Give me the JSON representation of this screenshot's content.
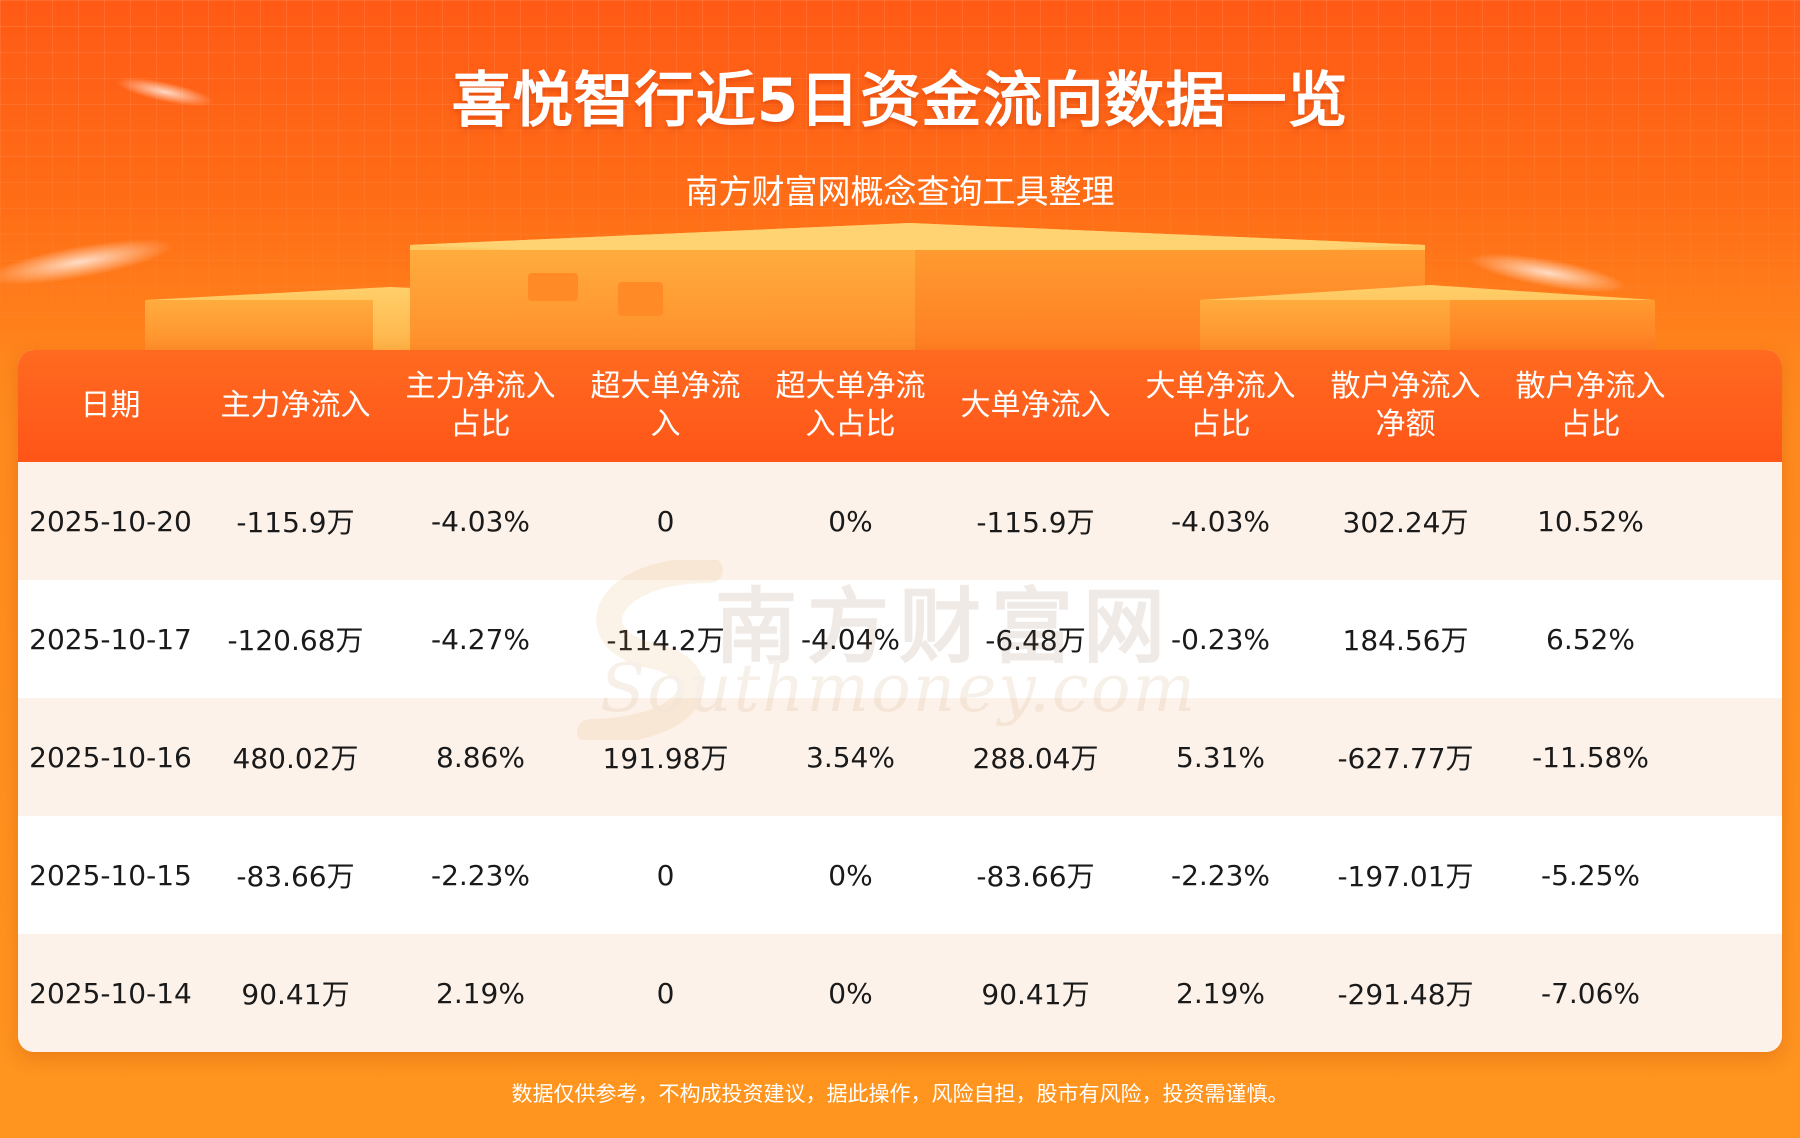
{
  "header": {
    "title": "喜悦智行近5日资金流向数据一览",
    "subtitle": "南方财富网概念查询工具整理"
  },
  "table": {
    "columns": [
      "日期",
      "主力净流入",
      "主力净流入\n占比",
      "超大单净流\n入",
      "超大单净流\n入占比",
      "大单净流入",
      "大单净流入\n占比",
      "散户净流入\n净额",
      "散户净流入\n占比"
    ],
    "rows": [
      [
        "2025-10-20",
        "-115.9万",
        "-4.03%",
        "0",
        "0%",
        "-115.9万",
        "-4.03%",
        "302.24万",
        "10.52%"
      ],
      [
        "2025-10-17",
        "-120.68万",
        "-4.27%",
        "-114.2万",
        "-4.04%",
        "-6.48万",
        "-0.23%",
        "184.56万",
        "6.52%"
      ],
      [
        "2025-10-16",
        "480.02万",
        "8.86%",
        "191.98万",
        "3.54%",
        "288.04万",
        "5.31%",
        "-627.77万",
        "-11.58%"
      ],
      [
        "2025-10-15",
        "-83.66万",
        "-2.23%",
        "0",
        "0%",
        "-83.66万",
        "-2.23%",
        "-197.01万",
        "-5.25%"
      ],
      [
        "2025-10-14",
        "90.41万",
        "2.19%",
        "0",
        "0%",
        "90.41万",
        "2.19%",
        "-291.48万",
        "-7.06%"
      ]
    ]
  },
  "watermark": {
    "cn": "南方财富网",
    "en": "Southmoney.com"
  },
  "footer": {
    "disclaimer": "数据仅供参考，不构成投资建议，据此操作，风险自担，股市有风险，投资需谨慎。"
  },
  "colors": {
    "background": "#ff7a1a",
    "header_row": "#ff5f1c",
    "row_alt": "#fdf2ea",
    "text": "#1a1a1a"
  }
}
